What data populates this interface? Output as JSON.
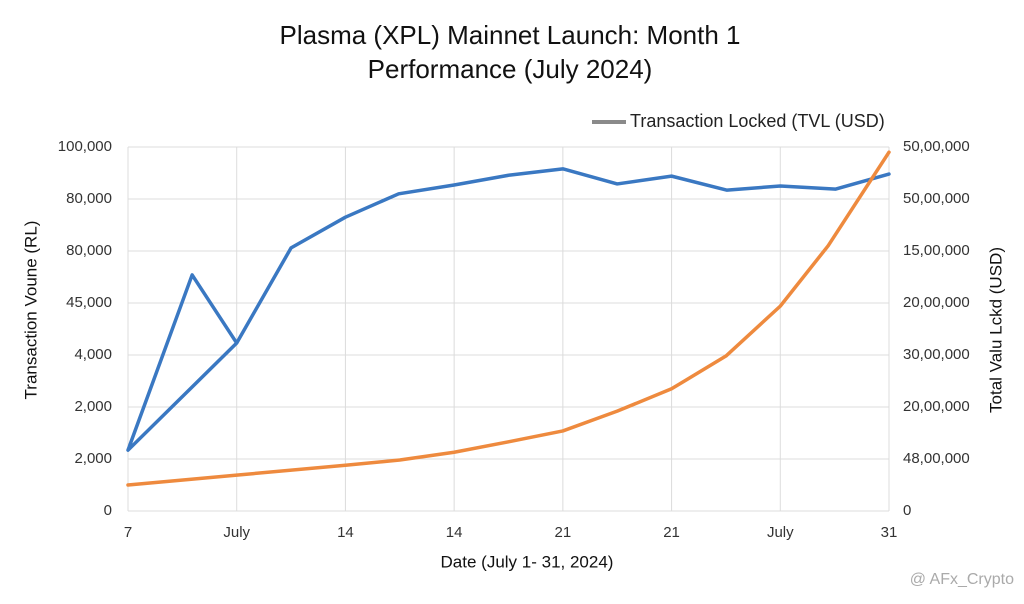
{
  "chart_data": {
    "type": "line",
    "title": [
      "Plasma (XPL) Mainnet Launch: Month 1",
      "Performance (July 2024)"
    ],
    "x_label": "Date (July 1- 31, 2024)",
    "y_label": "Transaction Voune (RL)",
    "y2_label": "Total Valu Lckd (USD)",
    "legend": {
      "label": "Transaction Locked (TVL (USD)",
      "color": "#8a8a8a"
    },
    "legend_position": "top-right",
    "grid": true,
    "xlim": [
      0,
      7
    ],
    "xticks": [
      {
        "value": 0,
        "label": "7"
      },
      {
        "value": 1,
        "label": "July"
      },
      {
        "value": 2,
        "label": "14"
      },
      {
        "value": 3,
        "label": "14"
      },
      {
        "value": 4,
        "label": "21"
      },
      {
        "value": 5,
        "label": "21"
      },
      {
        "value": 6,
        "label": "July"
      },
      {
        "value": 7,
        "label": "31"
      }
    ],
    "ylim": [
      0,
      7
    ],
    "yticks": [
      0,
      {
        "value": 1,
        "label": "2,000"
      },
      {
        "value": 2,
        "label": "2,000"
      },
      {
        "value": 3,
        "label": "4,000"
      },
      {
        "value": 4,
        "label": "45,000"
      },
      {
        "value": 5,
        "label": "80,000"
      },
      {
        "value": 6,
        "label": "80,000"
      },
      {
        "value": 7,
        "label": "100,000"
      }
    ],
    "y2lim": [
      0,
      7
    ],
    "y2ticks": [
      0,
      {
        "value": 1,
        "label": "48,00,000"
      },
      {
        "value": 2,
        "label": "20,00,000"
      },
      {
        "value": 3,
        "label": "30,00,000"
      },
      {
        "value": 4,
        "label": "20,00,000"
      },
      {
        "value": 5,
        "label": "15,00,000"
      },
      {
        "value": 6,
        "label": "50,00,000"
      },
      {
        "value": 7,
        "label": "50,00,000"
      }
    ],
    "series": [
      {
        "color": "#3a78c2",
        "axis": "y",
        "x": [
          1,
          0,
          0.59,
          1,
          1.5,
          2,
          2.49,
          3,
          3.51,
          4,
          4.5,
          5,
          5.51,
          6,
          6.51,
          7
        ],
        "values": [
          3.23,
          1.17,
          4.54,
          3.23,
          5.06,
          5.65,
          6.1,
          6.27,
          6.46,
          6.58,
          6.29,
          6.44,
          6.17,
          6.25,
          6.19,
          6.48
        ]
      },
      {
        "color": "#ee8a3e",
        "axis": "y2",
        "x": [
          0,
          1,
          2,
          2.5,
          3,
          3.5,
          4,
          4.5,
          5,
          5.5,
          6,
          6.44,
          7
        ],
        "values": [
          0.5,
          0.69,
          0.88,
          0.98,
          1.13,
          1.33,
          1.54,
          1.92,
          2.35,
          2.98,
          3.94,
          5.1,
          6.9
        ]
      }
    ],
    "watermark": "@ AFx_Crypto"
  }
}
